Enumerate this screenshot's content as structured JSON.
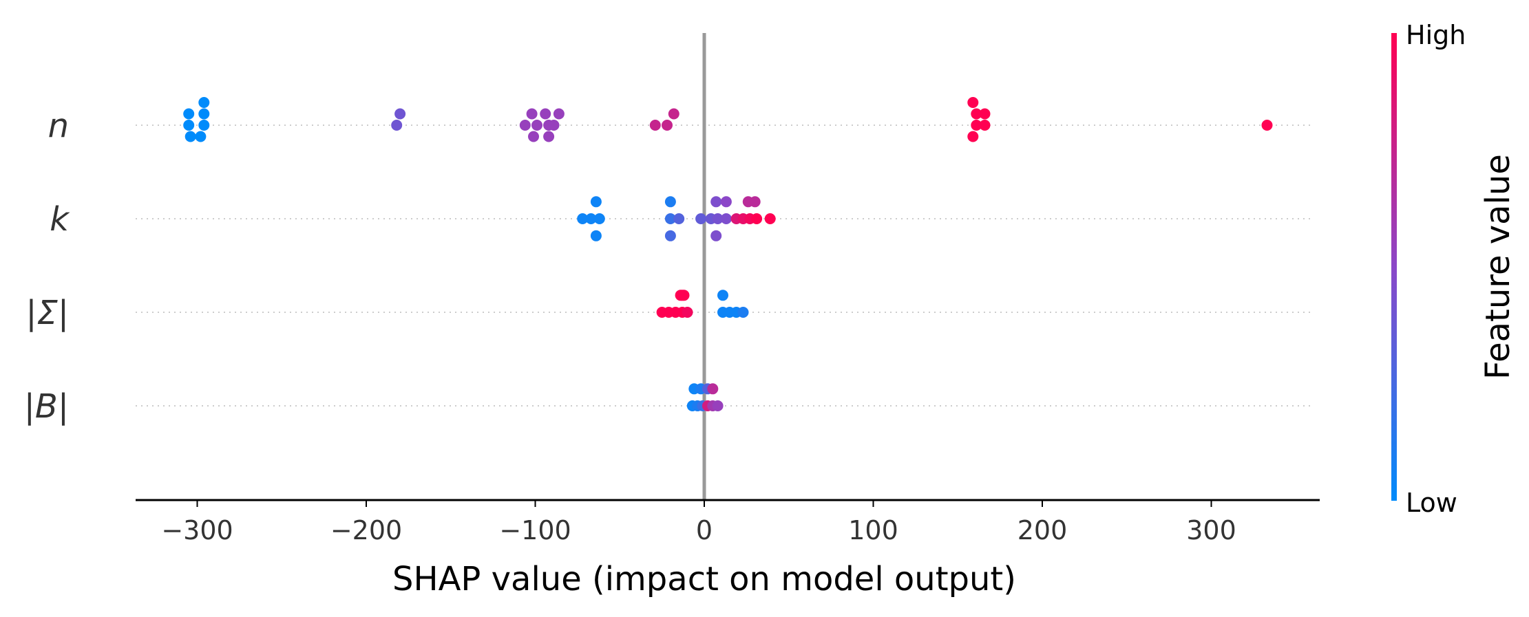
{
  "chart_data": {
    "type": "scatter",
    "subtype": "shap-beeswarm",
    "xlabel": "SHAP value (impact on model output)",
    "xlim": [
      -340,
      365
    ],
    "xticks": [
      -300,
      -200,
      -100,
      0,
      100,
      200,
      300
    ],
    "xtick_labels": [
      "−300",
      "−200",
      "−100",
      "0",
      "100",
      "200",
      "300"
    ],
    "zero_line": 0,
    "colors": {
      "low": "#008bfb",
      "mid": "#8b47c8",
      "high": "#ff0052",
      "zero_line": "#999999",
      "grid": "#cccccc",
      "axis": "#000000"
    },
    "colorbar": {
      "label": "Feature value",
      "high_label": "High",
      "low_label": "Low"
    },
    "features": [
      {
        "name": "n",
        "points": [
          {
            "x": -305,
            "dy": -1,
            "v": 0.0
          },
          {
            "x": -296,
            "dy": -2,
            "v": 0.0
          },
          {
            "x": -296,
            "dy": -1,
            "v": 0.0
          },
          {
            "x": -305,
            "dy": 0,
            "v": 0.0
          },
          {
            "x": -296,
            "dy": 0,
            "v": 0.0
          },
          {
            "x": -304,
            "dy": 1,
            "v": 0.0
          },
          {
            "x": -298,
            "dy": 1,
            "v": 0.0
          },
          {
            "x": -180,
            "dy": -1,
            "v": 0.4
          },
          {
            "x": -182,
            "dy": 0,
            "v": 0.4
          },
          {
            "x": -102,
            "dy": -1,
            "v": 0.55
          },
          {
            "x": -94,
            "dy": -1,
            "v": 0.55
          },
          {
            "x": -86,
            "dy": -1,
            "v": 0.55
          },
          {
            "x": -106,
            "dy": 0,
            "v": 0.55
          },
          {
            "x": -99,
            "dy": 0,
            "v": 0.55
          },
          {
            "x": -92,
            "dy": 0,
            "v": 0.55
          },
          {
            "x": -89,
            "dy": 0,
            "v": 0.55
          },
          {
            "x": -101,
            "dy": 1,
            "v": 0.55
          },
          {
            "x": -92,
            "dy": 1,
            "v": 0.55
          },
          {
            "x": -18,
            "dy": -1,
            "v": 0.75
          },
          {
            "x": -29,
            "dy": 0,
            "v": 0.75
          },
          {
            "x": -22,
            "dy": 0,
            "v": 0.75
          },
          {
            "x": 159,
            "dy": -2,
            "v": 1.0
          },
          {
            "x": 161,
            "dy": -1,
            "v": 1.0
          },
          {
            "x": 166,
            "dy": -1,
            "v": 1.0
          },
          {
            "x": 161,
            "dy": 0,
            "v": 1.0
          },
          {
            "x": 166,
            "dy": 0,
            "v": 1.0
          },
          {
            "x": 159,
            "dy": 1,
            "v": 1.0
          },
          {
            "x": 333,
            "dy": 0,
            "v": 1.0
          }
        ]
      },
      {
        "name": "k",
        "points": [
          {
            "x": -64,
            "dy": -1.5,
            "v": 0.05
          },
          {
            "x": -72,
            "dy": 0,
            "v": 0.05
          },
          {
            "x": -67,
            "dy": 0,
            "v": 0.05
          },
          {
            "x": -62,
            "dy": 0,
            "v": 0.05
          },
          {
            "x": -64,
            "dy": 1.5,
            "v": 0.05
          },
          {
            "x": -20,
            "dy": -1.5,
            "v": 0.1
          },
          {
            "x": -20,
            "dy": 0,
            "v": 0.2
          },
          {
            "x": -15,
            "dy": 0,
            "v": 0.3
          },
          {
            "x": -20,
            "dy": 1.5,
            "v": 0.25
          },
          {
            "x": 7,
            "dy": -1.5,
            "v": 0.45
          },
          {
            "x": 13,
            "dy": -1.5,
            "v": 0.5
          },
          {
            "x": 26,
            "dy": -1.5,
            "v": 0.7
          },
          {
            "x": 30,
            "dy": -1.5,
            "v": 0.7
          },
          {
            "x": -2,
            "dy": 0,
            "v": 0.35
          },
          {
            "x": 4,
            "dy": 0,
            "v": 0.38
          },
          {
            "x": 8,
            "dy": 0,
            "v": 0.42
          },
          {
            "x": 13,
            "dy": 0,
            "v": 0.45
          },
          {
            "x": 19,
            "dy": 0,
            "v": 0.85
          },
          {
            "x": 23,
            "dy": 0,
            "v": 0.9
          },
          {
            "x": 27,
            "dy": 0,
            "v": 0.95
          },
          {
            "x": 31,
            "dy": 0,
            "v": 1.0
          },
          {
            "x": 39,
            "dy": 0,
            "v": 1.0
          },
          {
            "x": 7,
            "dy": 1.5,
            "v": 0.45
          }
        ]
      },
      {
        "name": "|Σ|",
        "points": [
          {
            "x": -13,
            "dy": -1.5,
            "v": 1.0
          },
          {
            "x": -12,
            "dy": -1.5,
            "v": 1.0
          },
          {
            "x": -14,
            "dy": -1.5,
            "v": 1.0
          },
          {
            "x": -25,
            "dy": 0,
            "v": 1.0
          },
          {
            "x": -21,
            "dy": 0,
            "v": 1.0
          },
          {
            "x": -17,
            "dy": 0,
            "v": 1.0
          },
          {
            "x": -13,
            "dy": 0,
            "v": 1.0
          },
          {
            "x": -10,
            "dy": 0,
            "v": 0.95
          },
          {
            "x": 11,
            "dy": -1.5,
            "v": 0.05
          },
          {
            "x": 11,
            "dy": 0,
            "v": 0.05
          },
          {
            "x": 15,
            "dy": 0,
            "v": 0.05
          },
          {
            "x": 19,
            "dy": 0,
            "v": 0.05
          },
          {
            "x": 23,
            "dy": 0,
            "v": 0.1
          }
        ]
      },
      {
        "name": "|B|",
        "points": [
          {
            "x": -6,
            "dy": -1.5,
            "v": 0.05
          },
          {
            "x": -2,
            "dy": -1.5,
            "v": 0.1
          },
          {
            "x": 2,
            "dy": -1.5,
            "v": 0.3
          },
          {
            "x": 5,
            "dy": -1.5,
            "v": 0.7
          },
          {
            "x": -7,
            "dy": 0,
            "v": 0.05
          },
          {
            "x": -4,
            "dy": 0,
            "v": 0.1
          },
          {
            "x": -1,
            "dy": 0,
            "v": 0.2
          },
          {
            "x": 2,
            "dy": 0,
            "v": 0.8
          },
          {
            "x": 5,
            "dy": 0,
            "v": 0.6
          },
          {
            "x": 8,
            "dy": 0,
            "v": 0.55
          }
        ]
      }
    ]
  }
}
